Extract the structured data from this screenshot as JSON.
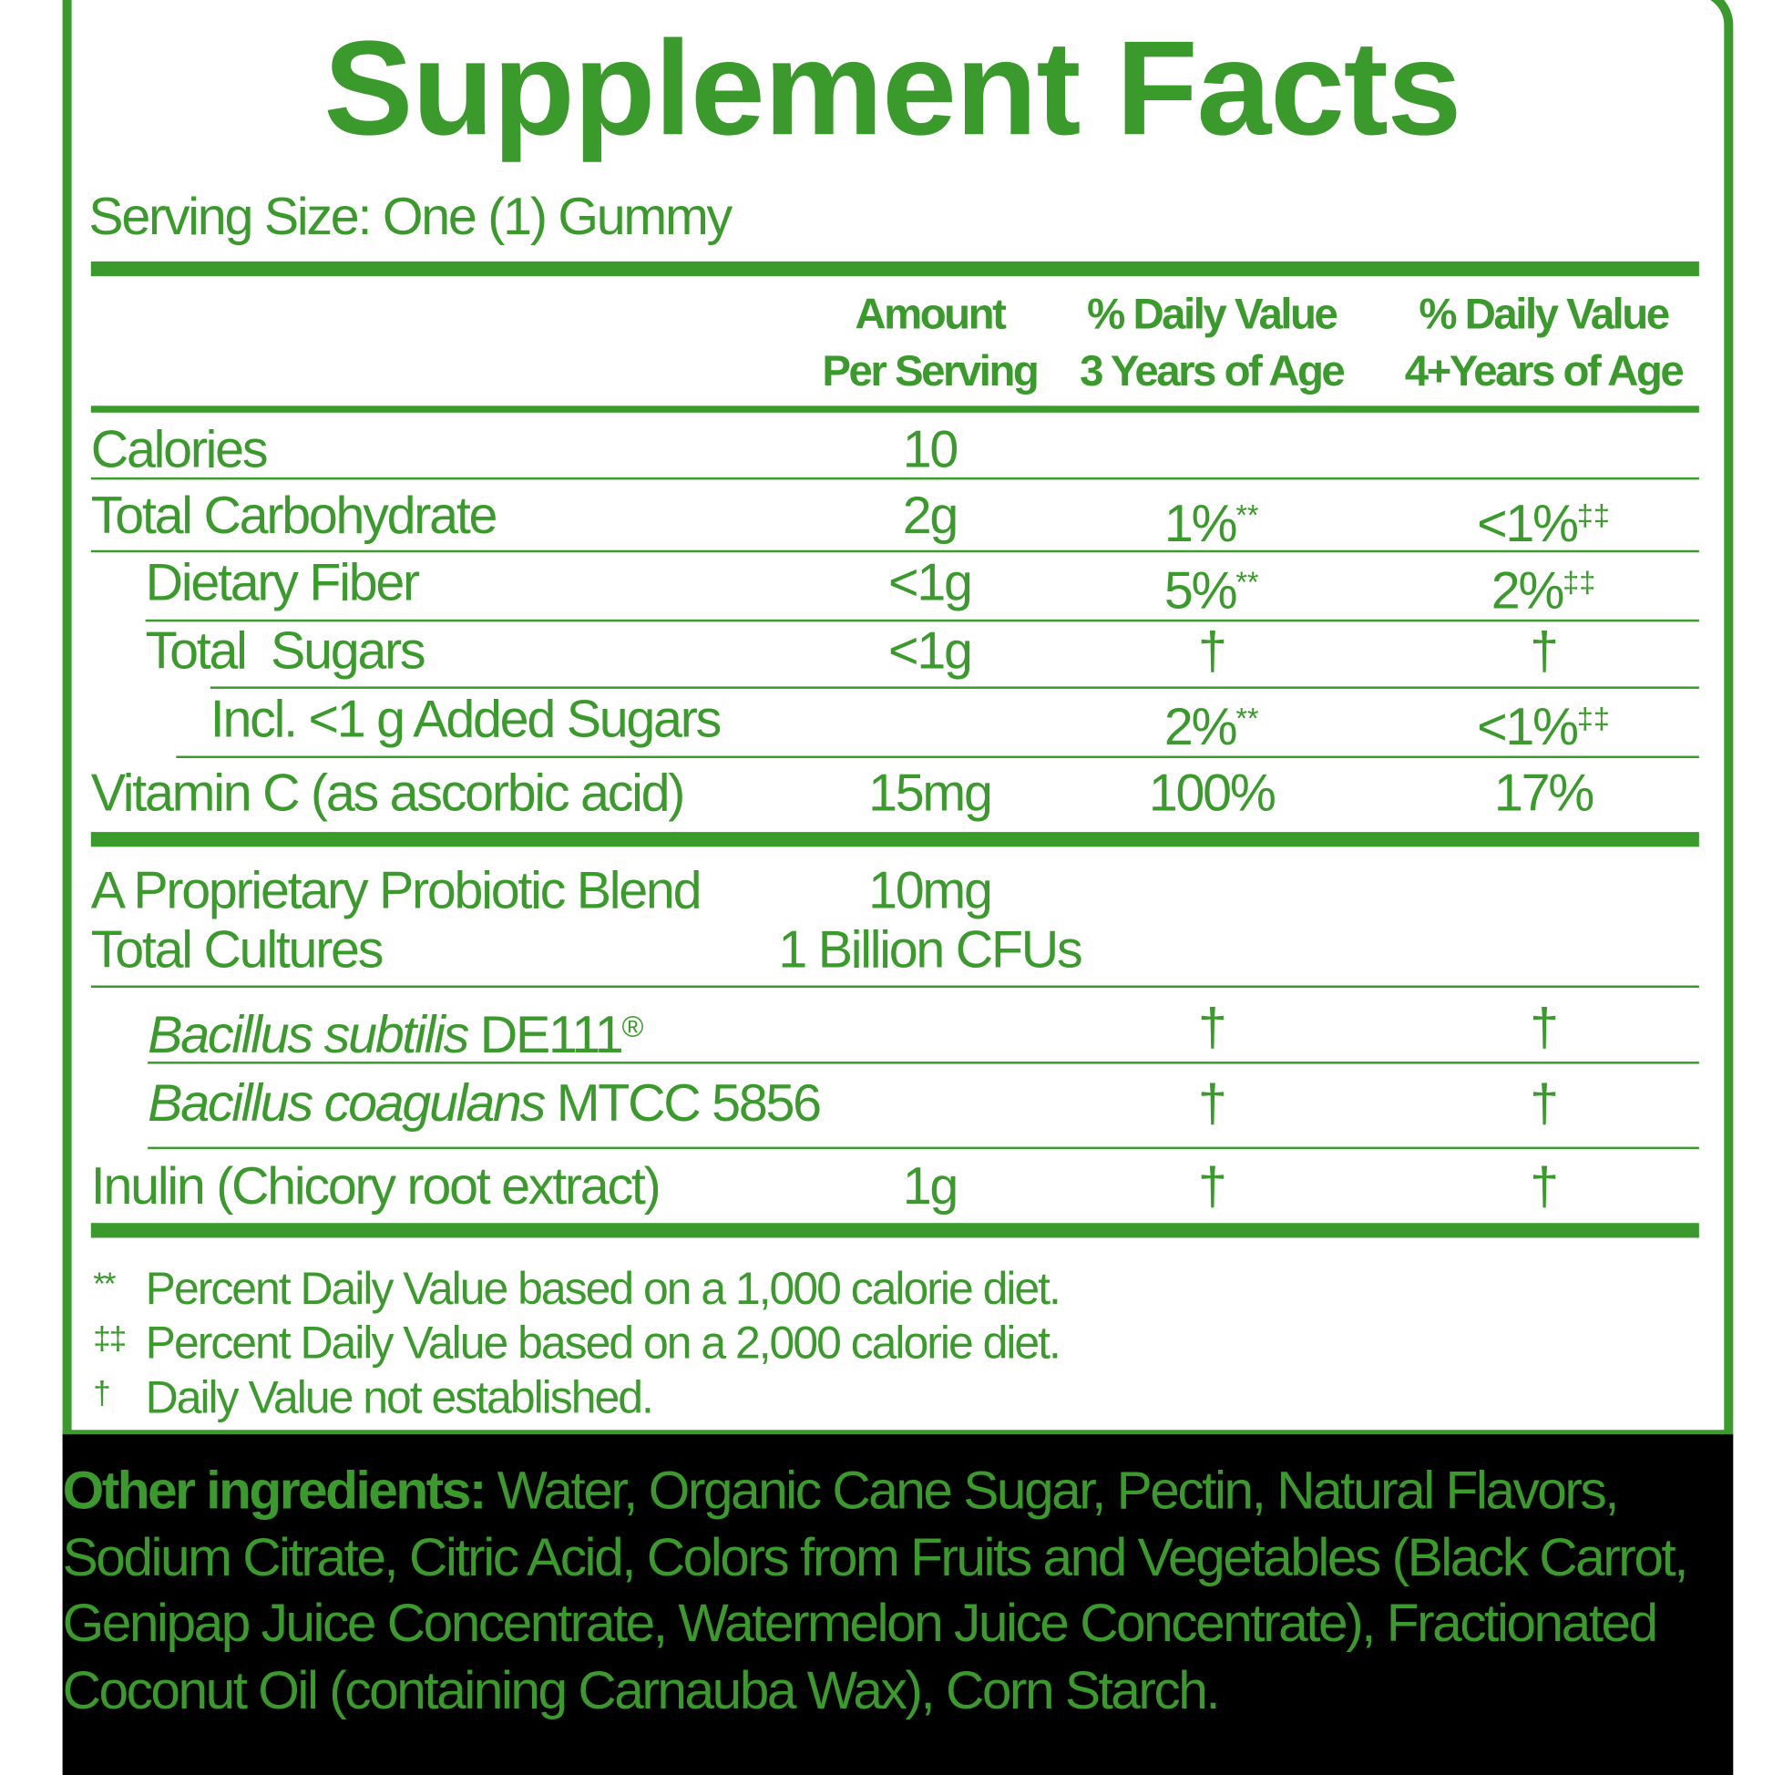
{
  "title": "Supplement Facts",
  "serving_size": "Serving Size: One (1) Gummy",
  "columns": [
    [
      "Amount",
      "Per Serving"
    ],
    [
      "% Daily Value",
      "3 Years of Age"
    ],
    [
      "% Daily Value",
      "4+Years of Age"
    ]
  ],
  "rows": [
    {
      "name": "Calories",
      "amount": "10"
    },
    {
      "name": "Total Carbohydrate",
      "amount": "2g",
      "dv3": {
        "value": "1%",
        "note": "**"
      },
      "dv4": {
        "value": "<1%",
        "note": "‡‡"
      }
    },
    {
      "name": "Dietary Fiber",
      "amount": "<1g",
      "dv3": {
        "value": "5%",
        "note": "**"
      },
      "dv4": {
        "value": "2%",
        "note": "‡‡"
      }
    },
    {
      "name": "Total  Sugars",
      "amount": "<1g",
      "dv3": {
        "value": "†"
      },
      "dv4": {
        "value": "†"
      }
    },
    {
      "name": "Incl. <1 g Added Sugars",
      "dv3": {
        "value": "2%",
        "note": "**"
      },
      "dv4": {
        "value": "<1%",
        "note": "‡‡"
      }
    },
    {
      "name": "Vitamin C (as ascorbic acid)",
      "amount": "15mg",
      "dv3": {
        "value": "100%"
      },
      "dv4": {
        "value": "17%"
      }
    },
    {
      "name": "A Proprietary Probiotic Blend",
      "amount": "10mg"
    },
    {
      "name": "Total Cultures",
      "amount": "1 Billion CFUs"
    },
    {
      "name": {
        "italic": "Bacillus subtilis",
        "text": " DE111",
        "sup": "®"
      },
      "dv3": {
        "value": "†"
      },
      "dv4": {
        "value": "†"
      }
    },
    {
      "name": {
        "italic": "Bacillus coagulans",
        "text": " MTCC 5856"
      },
      "dv3": {
        "value": "†"
      },
      "dv4": {
        "value": "†"
      }
    },
    {
      "name": "Inulin (Chicory root extract)",
      "amount": "1g",
      "dv3": {
        "value": "†"
      },
      "dv4": {
        "value": "†"
      }
    }
  ],
  "footnotes": [
    {
      "symbol": "**",
      "text": "Percent Daily Value based on a 1,000 calorie diet."
    },
    {
      "symbol": "‡‡",
      "text": "Percent Daily Value based on a 2,000 calorie diet."
    },
    {
      "symbol": "†",
      "text": "Daily Value not established."
    }
  ],
  "other_ingredients": {
    "label": "Other ingredients:",
    "text": " Water, Organic Cane Sugar, Pectin, Natural Flavors, Sodium Citrate, Citric Acid, Colors from Fruits and Vegetables (Black Carrot, Genipap Juice Concentrate, Watermelon Juice Concentrate), Fractionated Coconut Oil (containing Carnauba Wax), Corn Starch."
  }
}
